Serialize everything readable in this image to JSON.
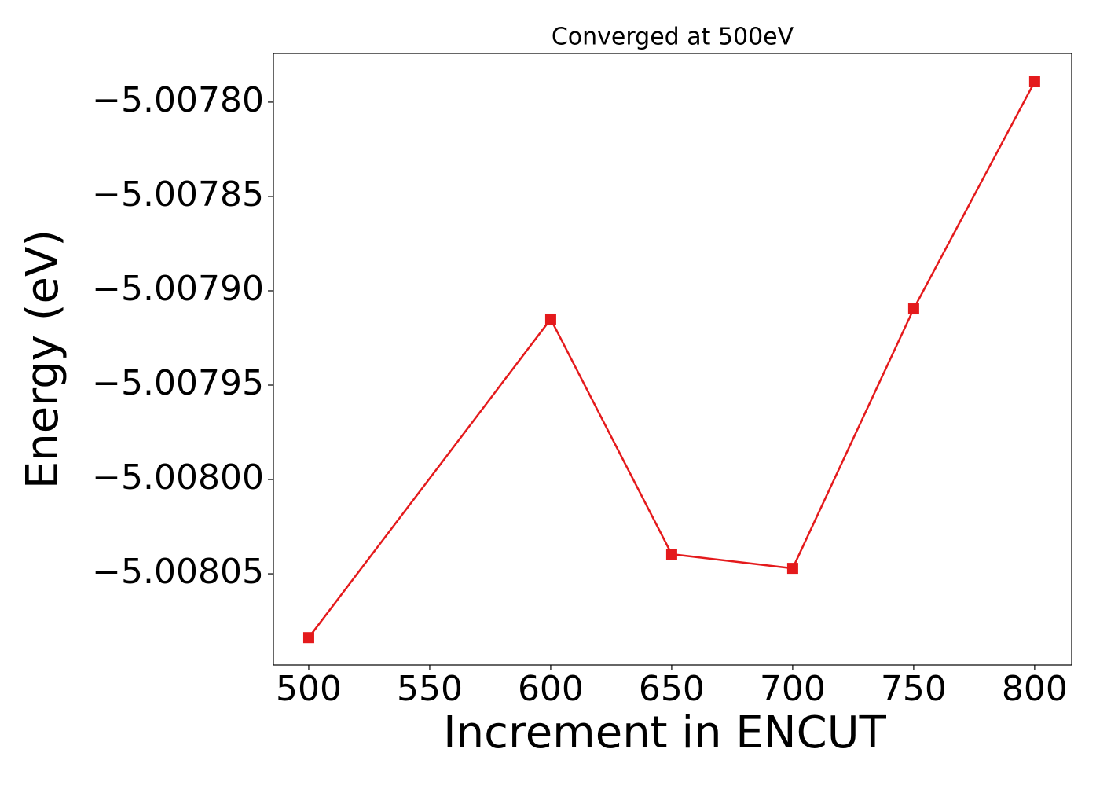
{
  "chart_data": {
    "type": "line",
    "title": "Converged at 500eV",
    "xlabel": "Increment in ENCUT",
    "ylabel": "Energy (eV)",
    "x": [
      500,
      600,
      650,
      700,
      750,
      800
    ],
    "series": [
      {
        "name": "Energy",
        "color": "#e41a1c",
        "marker": "square",
        "values": [
          -5.0080838,
          -5.007915,
          -5.0080396,
          -5.0080471,
          -5.0079096,
          -5.0077892
        ]
      }
    ],
    "xlim": [
      485.4,
      815.3
    ],
    "ylim": [
      -5.0080983,
      -5.0077742
    ],
    "xticks": [
      500,
      550,
      600,
      650,
      700,
      750,
      800
    ],
    "yticks": [
      {
        "value": -5.0078,
        "label": "−5.00780"
      },
      {
        "value": -5.00785,
        "label": "−5.00785"
      },
      {
        "value": -5.0079,
        "label": "−5.00790"
      },
      {
        "value": -5.00795,
        "label": "−5.00795"
      },
      {
        "value": -5.008,
        "label": "−5.00800"
      },
      {
        "value": -5.00805,
        "label": "−5.00805"
      }
    ],
    "grid": false
  }
}
